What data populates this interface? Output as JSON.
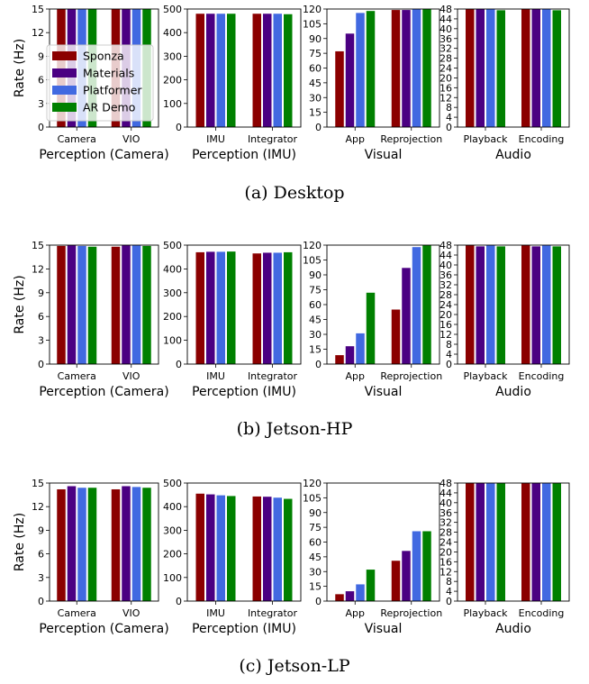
{
  "colors": {
    "Sponza": "#8b0000",
    "Materials": "#4b0082",
    "Platformer": "#4169e1",
    "AR Demo": "#008000"
  },
  "legend": {
    "placement": "upper-left of first panel in row (a)",
    "entries": [
      "Sponza",
      "Materials",
      "Platformer",
      "AR Demo"
    ]
  },
  "ylabel": "Rate (Hz)",
  "panel_titles": [
    "Perception (Camera)",
    "Perception (IMU)",
    "Visual",
    "Audio"
  ],
  "rows": [
    {
      "caption": "(a) Desktop"
    },
    {
      "caption": "(b) Jetson-HP"
    },
    {
      "caption": "(c) Jetson-LP"
    }
  ],
  "chart_data": [
    {
      "type": "bar",
      "row": "(a) Desktop",
      "title": "Perception (Camera)",
      "ylabel": "Rate (Hz)",
      "categories": [
        "Camera",
        "VIO"
      ],
      "ylim": [
        0,
        15
      ],
      "yticks": [
        0,
        3,
        6,
        9,
        12,
        15
      ],
      "series": [
        {
          "name": "Sponza",
          "values": [
            15,
            15
          ]
        },
        {
          "name": "Materials",
          "values": [
            15,
            15
          ]
        },
        {
          "name": "Platformer",
          "values": [
            15,
            15
          ]
        },
        {
          "name": "AR Demo",
          "values": [
            15,
            15
          ]
        }
      ]
    },
    {
      "type": "bar",
      "row": "(a) Desktop",
      "title": "Perception (IMU)",
      "categories": [
        "IMU",
        "Integrator"
      ],
      "ylim": [
        0,
        500
      ],
      "yticks": [
        0,
        100,
        200,
        300,
        400,
        500
      ],
      "series": [
        {
          "name": "Sponza",
          "values": [
            480,
            480
          ]
        },
        {
          "name": "Materials",
          "values": [
            480,
            480
          ]
        },
        {
          "name": "Platformer",
          "values": [
            480,
            480
          ]
        },
        {
          "name": "AR Demo",
          "values": [
            480,
            478
          ]
        }
      ]
    },
    {
      "type": "bar",
      "row": "(a) Desktop",
      "title": "Visual",
      "categories": [
        "App",
        "Reprojection"
      ],
      "ylim": [
        0,
        120
      ],
      "yticks": [
        0,
        15,
        30,
        45,
        60,
        75,
        90,
        105,
        120
      ],
      "series": [
        {
          "name": "Sponza",
          "values": [
            77,
            119
          ]
        },
        {
          "name": "Materials",
          "values": [
            95,
            119
          ]
        },
        {
          "name": "Platformer",
          "values": [
            116,
            120
          ]
        },
        {
          "name": "AR Demo",
          "values": [
            118,
            120
          ]
        }
      ]
    },
    {
      "type": "bar",
      "row": "(a) Desktop",
      "title": "Audio",
      "categories": [
        "Playback",
        "Encoding"
      ],
      "ylim": [
        0,
        48
      ],
      "yticks": [
        0,
        4,
        8,
        12,
        16,
        20,
        24,
        28,
        32,
        36,
        40,
        44,
        48
      ],
      "series": [
        {
          "name": "Sponza",
          "values": [
            48,
            48
          ]
        },
        {
          "name": "Materials",
          "values": [
            48,
            48
          ]
        },
        {
          "name": "Platformer",
          "values": [
            48,
            48
          ]
        },
        {
          "name": "AR Demo",
          "values": [
            47.5,
            47.5
          ]
        }
      ]
    },
    {
      "type": "bar",
      "row": "(b) Jetson-HP",
      "title": "Perception (Camera)",
      "ylabel": "Rate (Hz)",
      "categories": [
        "Camera",
        "VIO"
      ],
      "ylim": [
        0,
        15
      ],
      "yticks": [
        0,
        3,
        6,
        9,
        12,
        15
      ],
      "series": [
        {
          "name": "Sponza",
          "values": [
            14.9,
            14.8
          ]
        },
        {
          "name": "Materials",
          "values": [
            15,
            15
          ]
        },
        {
          "name": "Platformer",
          "values": [
            14.9,
            15
          ]
        },
        {
          "name": "AR Demo",
          "values": [
            14.8,
            14.9
          ]
        }
      ]
    },
    {
      "type": "bar",
      "row": "(b) Jetson-HP",
      "title": "Perception (IMU)",
      "categories": [
        "IMU",
        "Integrator"
      ],
      "ylim": [
        0,
        500
      ],
      "yticks": [
        0,
        100,
        200,
        300,
        400,
        500
      ],
      "series": [
        {
          "name": "Sponza",
          "values": [
            470,
            465
          ]
        },
        {
          "name": "Materials",
          "values": [
            472,
            468
          ]
        },
        {
          "name": "Platformer",
          "values": [
            472,
            468
          ]
        },
        {
          "name": "AR Demo",
          "values": [
            473,
            470
          ]
        }
      ]
    },
    {
      "type": "bar",
      "row": "(b) Jetson-HP",
      "title": "Visual",
      "categories": [
        "App",
        "Reprojection"
      ],
      "ylim": [
        0,
        120
      ],
      "yticks": [
        0,
        15,
        30,
        45,
        60,
        75,
        90,
        105,
        120
      ],
      "series": [
        {
          "name": "Sponza",
          "values": [
            9,
            55
          ]
        },
        {
          "name": "Materials",
          "values": [
            18,
            97
          ]
        },
        {
          "name": "Platformer",
          "values": [
            31,
            118
          ]
        },
        {
          "name": "AR Demo",
          "values": [
            72,
            120
          ]
        }
      ]
    },
    {
      "type": "bar",
      "row": "(b) Jetson-HP",
      "title": "Audio",
      "categories": [
        "Playback",
        "Encoding"
      ],
      "ylim": [
        0,
        48
      ],
      "yticks": [
        0,
        4,
        8,
        12,
        16,
        20,
        24,
        28,
        32,
        36,
        40,
        44,
        48
      ],
      "series": [
        {
          "name": "Sponza",
          "values": [
            48,
            48
          ]
        },
        {
          "name": "Materials",
          "values": [
            47.5,
            47.5
          ]
        },
        {
          "name": "Platformer",
          "values": [
            48,
            48
          ]
        },
        {
          "name": "AR Demo",
          "values": [
            47.5,
            47.5
          ]
        }
      ]
    },
    {
      "type": "bar",
      "row": "(c) Jetson-LP",
      "title": "Perception (Camera)",
      "ylabel": "Rate (Hz)",
      "categories": [
        "Camera",
        "VIO"
      ],
      "ylim": [
        0,
        15
      ],
      "yticks": [
        0,
        3,
        6,
        9,
        12,
        15
      ],
      "series": [
        {
          "name": "Sponza",
          "values": [
            14.2,
            14.2
          ]
        },
        {
          "name": "Materials",
          "values": [
            14.6,
            14.6
          ]
        },
        {
          "name": "Platformer",
          "values": [
            14.4,
            14.5
          ]
        },
        {
          "name": "AR Demo",
          "values": [
            14.4,
            14.4
          ]
        }
      ]
    },
    {
      "type": "bar",
      "row": "(c) Jetson-LP",
      "title": "Perception (IMU)",
      "categories": [
        "IMU",
        "Integrator"
      ],
      "ylim": [
        0,
        500
      ],
      "yticks": [
        0,
        100,
        200,
        300,
        400,
        500
      ],
      "series": [
        {
          "name": "Sponza",
          "values": [
            455,
            443
          ]
        },
        {
          "name": "Materials",
          "values": [
            452,
            442
          ]
        },
        {
          "name": "Platformer",
          "values": [
            448,
            438
          ]
        },
        {
          "name": "AR Demo",
          "values": [
            445,
            433
          ]
        }
      ]
    },
    {
      "type": "bar",
      "row": "(c) Jetson-LP",
      "title": "Visual",
      "categories": [
        "App",
        "Reprojection"
      ],
      "ylim": [
        0,
        120
      ],
      "yticks": [
        0,
        15,
        30,
        45,
        60,
        75,
        90,
        105,
        120
      ],
      "series": [
        {
          "name": "Sponza",
          "values": [
            7,
            41
          ]
        },
        {
          "name": "Materials",
          "values": [
            10,
            51
          ]
        },
        {
          "name": "Platformer",
          "values": [
            17,
            71
          ]
        },
        {
          "name": "AR Demo",
          "values": [
            32,
            71
          ]
        }
      ]
    },
    {
      "type": "bar",
      "row": "(c) Jetson-LP",
      "title": "Audio",
      "categories": [
        "Playback",
        "Encoding"
      ],
      "ylim": [
        0,
        48
      ],
      "yticks": [
        0,
        4,
        8,
        12,
        16,
        20,
        24,
        28,
        32,
        36,
        40,
        44,
        48
      ],
      "series": [
        {
          "name": "Sponza",
          "values": [
            48,
            48
          ]
        },
        {
          "name": "Materials",
          "values": [
            48,
            48
          ]
        },
        {
          "name": "Platformer",
          "values": [
            48,
            48
          ]
        },
        {
          "name": "AR Demo",
          "values": [
            48,
            48
          ]
        }
      ]
    }
  ]
}
